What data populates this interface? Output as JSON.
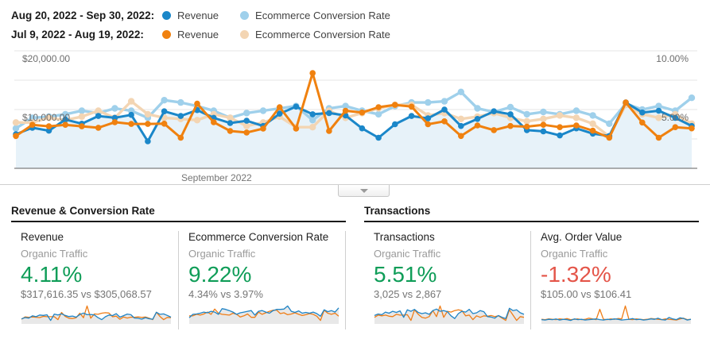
{
  "colors": {
    "current_revenue": "#1b87c9",
    "previous_revenue": "#f0810f",
    "current_conversion": "#9fd0eb",
    "previous_conversion": "#f3d5b3",
    "area_fill": "#e7f2f9",
    "gridline": "#e6e6e6",
    "axis_line": "#5f5f5f",
    "positive": "#0f9d58",
    "negative": "#e45549",
    "spark_current": "#1f84c6",
    "spark_previous": "#ef7d17",
    "spark_fill": "#e8e8e8"
  },
  "legend": {
    "rows": [
      {
        "date_range": "Aug 20, 2022 - Sep 30, 2022:",
        "items": [
          {
            "label": "Revenue",
            "color_key": "current_revenue"
          },
          {
            "label": "Ecommerce Conversion Rate",
            "color_key": "current_conversion"
          }
        ]
      },
      {
        "date_range": "Jul 9, 2022 - Aug 19, 2022:",
        "items": [
          {
            "label": "Revenue",
            "color_key": "previous_revenue"
          },
          {
            "label": "Ecommerce Conversion Rate",
            "color_key": "previous_conversion"
          }
        ]
      }
    ]
  },
  "chart_data": {
    "type": "line",
    "x_axis": {
      "label": "September 2022",
      "points": 42
    },
    "left_axis": {
      "ticks": [
        {
          "label": "$20,000.00",
          "value": 20000
        },
        {
          "label": "$10,000.00",
          "value": 10000
        }
      ],
      "min": 0,
      "max": 20000
    },
    "right_axis": {
      "ticks": [
        {
          "label": "10.00%",
          "value": 10
        },
        {
          "label": "5.00%",
          "value": 5
        }
      ],
      "min": 0,
      "max": 10
    },
    "gridline_values": [
      20000,
      15000,
      10000,
      5000
    ],
    "series": [
      {
        "name": "Revenue (Aug 20, 2022 - Sep 30, 2022)",
        "axis": "left",
        "color_key": "current_revenue",
        "area": true,
        "values": [
          5800,
          6900,
          6400,
          8300,
          7600,
          8900,
          8600,
          9100,
          4600,
          9700,
          8900,
          9900,
          8600,
          7700,
          8100,
          7200,
          9300,
          10500,
          9200,
          9400,
          9000,
          6800,
          5200,
          7500,
          8900,
          8500,
          10000,
          7200,
          8400,
          9700,
          9200,
          6500,
          6300,
          5600,
          6800,
          5900,
          5500,
          11200,
          9500,
          9800,
          8600,
          7200
        ]
      },
      {
        "name": "Revenue (Jul 9, 2022 - Aug 19, 2022)",
        "axis": "left",
        "color_key": "previous_revenue",
        "area": false,
        "values": [
          5500,
          7400,
          7150,
          7400,
          7150,
          6900,
          7850,
          7550,
          7550,
          7600,
          5200,
          11000,
          7850,
          6350,
          6100,
          6750,
          10400,
          6750,
          16200,
          6350,
          9800,
          9500,
          10400,
          10800,
          10500,
          7500,
          8000,
          5500,
          7300,
          6500,
          7200,
          7100,
          7400,
          7000,
          7300,
          6400,
          5200,
          11200,
          7800,
          5200,
          7000,
          6800
        ]
      },
      {
        "name": "Ecommerce Conversion Rate (Aug 20, 2022 - Sep 30, 2022)",
        "axis": "right",
        "color_key": "current_conversion",
        "area": false,
        "values": [
          3.4,
          4.3,
          4.4,
          4.6,
          4.9,
          4.7,
          5.1,
          4.9,
          4.3,
          5.8,
          5.6,
          5.3,
          4.9,
          4.3,
          4.7,
          4.9,
          5.1,
          5.3,
          4.1,
          5.1,
          5.3,
          4.9,
          4.6,
          5.3,
          5.6,
          5.6,
          5.7,
          6.5,
          5.1,
          4.8,
          5.2,
          4.6,
          4.8,
          4.6,
          4.9,
          4.5,
          3.8,
          5.5,
          5.0,
          5.3,
          4.9,
          6.0
        ]
      },
      {
        "name": "Ecommerce Conversion Rate (Jul 9, 2022 - Aug 19, 2022)",
        "axis": "right",
        "color_key": "previous_conversion",
        "area": false,
        "values": [
          3.9,
          3.9,
          4.3,
          4.1,
          4.4,
          4.9,
          4.3,
          5.7,
          4.6,
          4.3,
          4.2,
          4.1,
          4.6,
          4.3,
          3.6,
          3.9,
          4.4,
          3.5,
          3.5,
          4.9,
          4.3,
          4.7,
          5.1,
          5.4,
          5.4,
          4.5,
          4.7,
          4.2,
          4.4,
          4.7,
          4.3,
          4.0,
          4.2,
          4.5,
          4.3,
          3.8,
          2.7,
          5.4,
          4.6,
          4.3,
          4.6,
          3.8
        ]
      }
    ]
  },
  "collapse_button": {
    "icon": "chevron-down"
  },
  "sections": [
    {
      "heading": "Revenue & Conversion Rate",
      "cards": [
        {
          "title": "Revenue",
          "segment": "Organic Traffic",
          "change": "4.11%",
          "trend": "positive",
          "comparison": "$317,616.35 vs $305,068.57",
          "spark": {
            "source_series": [
              0,
              1
            ]
          }
        },
        {
          "title": "Ecommerce Conversion Rate",
          "segment": "Organic Traffic",
          "change": "9.22%",
          "trend": "positive",
          "comparison": "4.34% vs 3.97%",
          "spark": {
            "source_series": [
              2,
              3
            ]
          }
        }
      ]
    },
    {
      "heading": "Transactions",
      "cards": [
        {
          "title": "Transactions",
          "segment": "Organic Traffic",
          "change": "5.51%",
          "trend": "positive",
          "comparison": "3,025 vs 2,867",
          "spark": {
            "current": [
              64,
              68,
              66,
              73,
              70,
              75,
              72,
              76,
              59,
              79,
              75,
              80,
              72,
              69,
              71,
              67,
              77,
              81,
              75,
              77,
              74,
              63,
              56,
              69,
              75,
              73,
              80,
              69,
              71,
              77,
              74,
              61,
              60,
              57,
              64,
              59,
              56,
              83,
              77,
              79,
              71,
              67
            ],
            "previous": [
              59,
              65,
              63,
              65,
              62,
              61,
              67,
              65,
              65,
              66,
              51,
              79,
              67,
              59,
              57,
              61,
              77,
              61,
              89,
              59,
              75,
              73,
              77,
              79,
              77,
              63,
              65,
              53,
              63,
              59,
              63,
              62,
              64,
              61,
              63,
              57,
              51,
              79,
              65,
              51,
              61,
              59
            ]
          }
        },
        {
          "title": "Avg. Order Value",
          "segment": "Organic Traffic",
          "change": "-1.32%",
          "trend": "negative",
          "comparison": "$105.00 vs $106.41",
          "spark": {
            "current": [
              104,
              103,
              105,
              104,
              106,
              103,
              105,
              104,
              102,
              106,
              104,
              105,
              103,
              104,
              105,
              106,
              104,
              103,
              105,
              104,
              106,
              105,
              103,
              104,
              105,
              107,
              104,
              105,
              103,
              104,
              106,
              105,
              108,
              104,
              103,
              110,
              106,
              104,
              109,
              107,
              103,
              105
            ],
            "previous": [
              105,
              104,
              106,
              105,
              104,
              106,
              105,
              107,
              104,
              105,
              106,
              104,
              105,
              108,
              106,
              104,
              132,
              105,
              104,
              106,
              105,
              107,
              106,
              141,
              105,
              104,
              106,
              105,
              104,
              105,
              107,
              106,
              105,
              104,
              106,
              105,
              104,
              103,
              106,
              108,
              104,
              105
            ]
          }
        }
      ]
    }
  ]
}
